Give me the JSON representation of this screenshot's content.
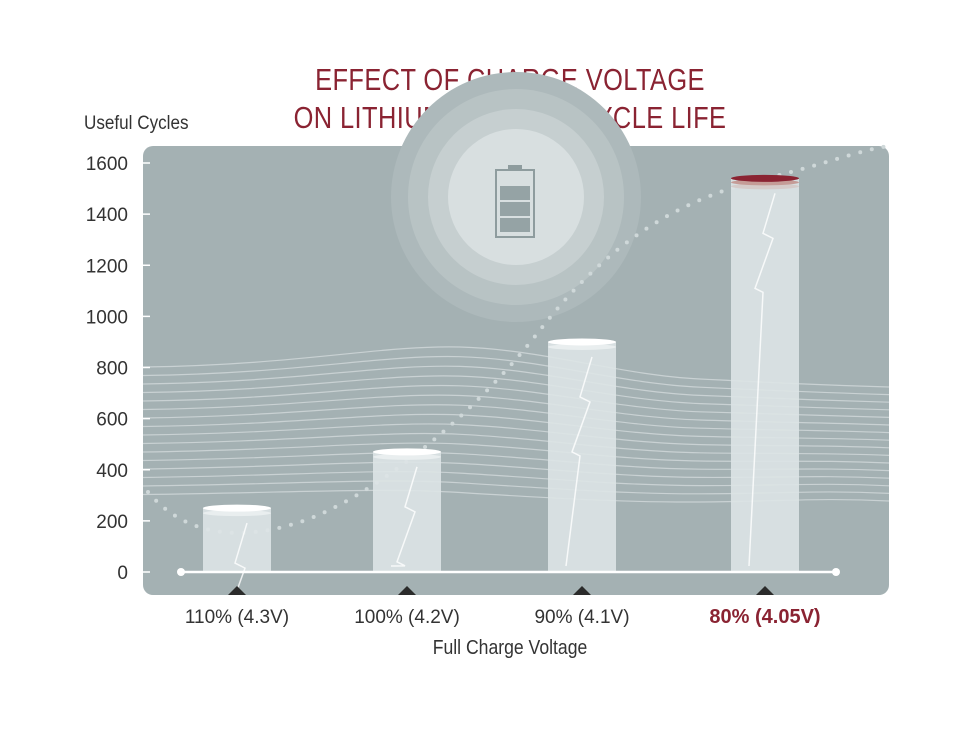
{
  "chart_data": {
    "type": "bar",
    "title": "EFFECT OF CHARGE VOLTAGE\nON LITHIUM BATTERY CYCLE LIFE",
    "title_lines": [
      "EFFECT OF CHARGE VOLTAGE",
      "ON LITHIUM BATTERY CYCLE LIFE"
    ],
    "ylabel": "Useful Cycles",
    "xlabel": "Full Charge Voltage",
    "categories": [
      "110% (4.3V)",
      "100% (4.2V)",
      "90% (4.1V)",
      "80% (4.05V)"
    ],
    "values": [
      250,
      470,
      900,
      1540
    ],
    "highlight_category": "80% (4.05V)",
    "ylim": [
      0,
      1600
    ],
    "yticks": [
      0,
      200,
      400,
      600,
      800,
      1000,
      1200,
      1400,
      1600
    ],
    "grid": false,
    "colors": {
      "title": "#8a2332",
      "highlight": "#8a2332",
      "panel": "#a4b1b3",
      "bar": "#dde4e6",
      "text": "#333333"
    },
    "icon": "battery-icon"
  }
}
